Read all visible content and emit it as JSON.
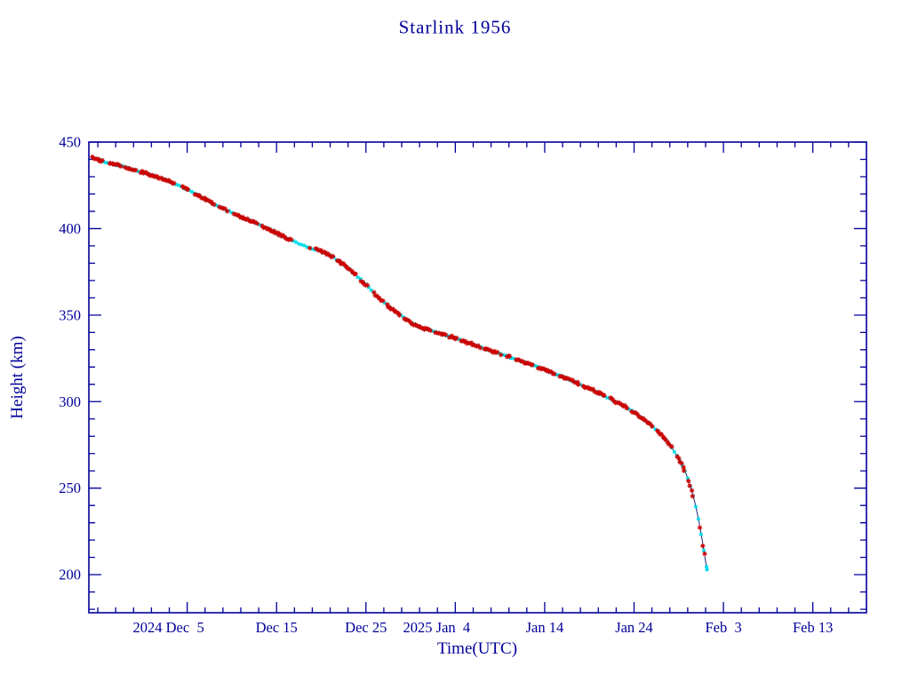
{
  "title": "Starlink 1956",
  "colors": {
    "axis": "#000099",
    "text": "#000099",
    "marker_red": "#cc0000",
    "marker_cyan": "#00dde8",
    "trend_line": "#101060",
    "background": "#ffffff"
  },
  "chart_data": {
    "type": "scatter",
    "title": "Starlink 1956",
    "xlabel": "Time(UTC)",
    "ylabel": "Height (km)",
    "x_axis": {
      "unit": "days (day 0 = left edge of plot, late Nov 2024)",
      "lim": [
        0,
        87
      ],
      "major_ticks": [
        {
          "day": 11,
          "label": "2024 Dec  5",
          "year_prefix": true
        },
        {
          "day": 21,
          "label": "Dec 15"
        },
        {
          "day": 31,
          "label": "Dec 25"
        },
        {
          "day": 41,
          "label": "2025 Jan  4",
          "year_prefix": true
        },
        {
          "day": 51,
          "label": "Jan 14"
        },
        {
          "day": 61,
          "label": "Jan 24"
        },
        {
          "day": 71,
          "label": "Feb  3"
        },
        {
          "day": 81,
          "label": "Feb 13"
        }
      ],
      "minor_tick_step": 2
    },
    "y_axis": {
      "lim": [
        178,
        450
      ],
      "major_ticks": [
        200,
        250,
        300,
        350,
        400,
        450
      ],
      "minor_tick_step": 10
    },
    "series": [
      {
        "name": "predicted-height",
        "marker": "filled-square",
        "color": "#00dde8"
      },
      {
        "name": "observed-height",
        "marker": "asterisk",
        "color": "#cc0000"
      }
    ],
    "decay_profile_points": [
      [
        0.4,
        441
      ],
      [
        2,
        438.3
      ],
      [
        4,
        435.6
      ],
      [
        6,
        432.6
      ],
      [
        8,
        429.2
      ],
      [
        10,
        425
      ],
      [
        12,
        419.8
      ],
      [
        14,
        414.2
      ],
      [
        16,
        409.2
      ],
      [
        18,
        404.6
      ],
      [
        20,
        400
      ],
      [
        22,
        394.8
      ],
      [
        23.5,
        391.2
      ],
      [
        25,
        388.5
      ],
      [
        26,
        386.8
      ],
      [
        27,
        384.5
      ],
      [
        28,
        381
      ],
      [
        29,
        377
      ],
      [
        30,
        372.5
      ],
      [
        31,
        367.5
      ],
      [
        32,
        362.2
      ],
      [
        33,
        357.5
      ],
      [
        34,
        353.2
      ],
      [
        35,
        349.4
      ],
      [
        36,
        346
      ],
      [
        37,
        343.2
      ],
      [
        38,
        341.4
      ],
      [
        39,
        340
      ],
      [
        40,
        338.3
      ],
      [
        41,
        336.6
      ],
      [
        42,
        334.8
      ],
      [
        44,
        331.2
      ],
      [
        46,
        327.6
      ],
      [
        48,
        324
      ],
      [
        50,
        320.4
      ],
      [
        52,
        316.4
      ],
      [
        54,
        312.2
      ],
      [
        56,
        307.6
      ],
      [
        58,
        302.6
      ],
      [
        60,
        297
      ],
      [
        61,
        293.8
      ],
      [
        62,
        290
      ],
      [
        63,
        286
      ],
      [
        64,
        281
      ],
      [
        65,
        274.8
      ],
      [
        66,
        267
      ],
      [
        66.8,
        258.5
      ],
      [
        67.4,
        249.5
      ],
      [
        67.9,
        239.5
      ],
      [
        68.3,
        229.5
      ],
      [
        68.6,
        220.5
      ],
      [
        68.85,
        212.5
      ],
      [
        69.05,
        206
      ],
      [
        69.15,
        203
      ]
    ],
    "cyan_visible_spans": [
      [
        1.6,
        2.2
      ],
      [
        5.3,
        5.7
      ],
      [
        9.8,
        10.2
      ],
      [
        15.6,
        16.1
      ],
      [
        22.8,
        24.6
      ],
      [
        27.3,
        27.7
      ],
      [
        31.2,
        31.8
      ],
      [
        34.8,
        35.15
      ],
      [
        38.2,
        38.7
      ],
      [
        41.2,
        41.6
      ],
      [
        43.8,
        44.2
      ],
      [
        47.2,
        47.7
      ],
      [
        49.8,
        50.2
      ],
      [
        52.2,
        52.7
      ],
      [
        54.8,
        55.15
      ],
      [
        57.7,
        58.2
      ],
      [
        60.3,
        60.7
      ],
      [
        63.1,
        63.5
      ],
      [
        65.3,
        65.7
      ],
      [
        66.7,
        67.0
      ],
      [
        67.95,
        68.2
      ],
      [
        68.45,
        68.65
      ],
      [
        68.9,
        69.2
      ]
    ]
  }
}
